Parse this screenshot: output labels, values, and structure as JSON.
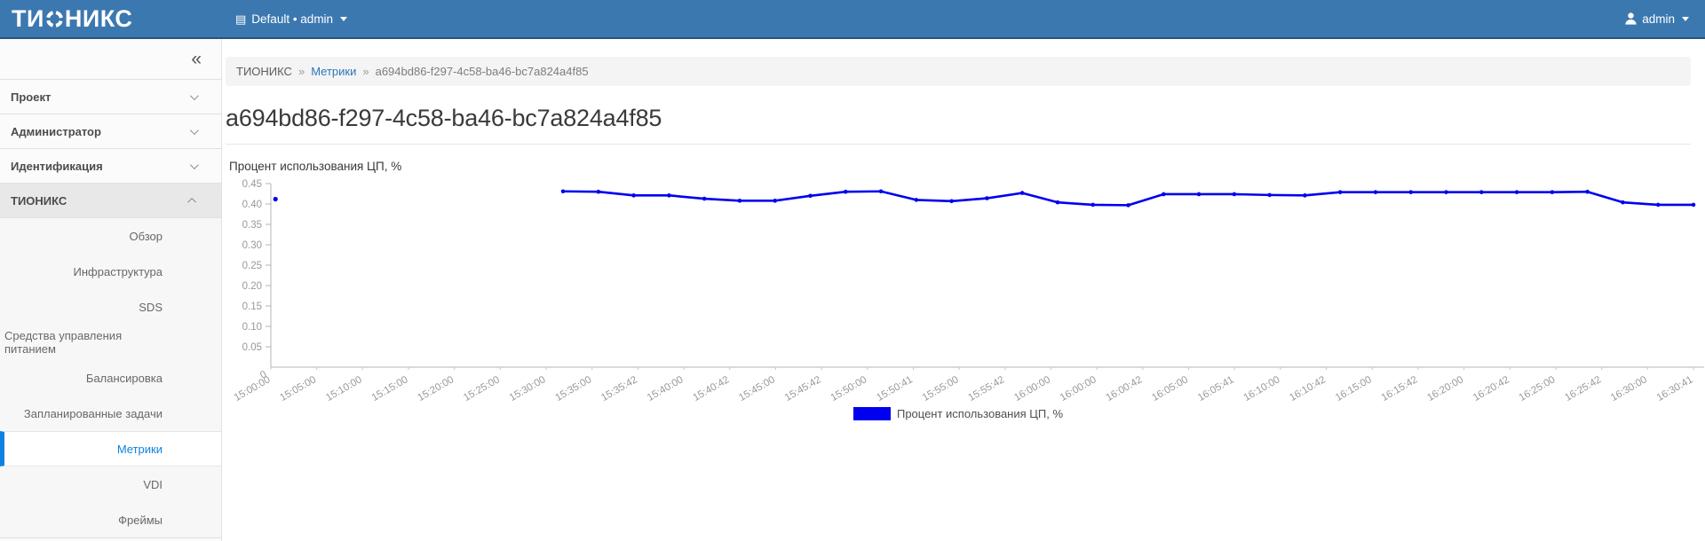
{
  "navbar": {
    "logo_prefix": "ТИ",
    "logo_suffix": "НИКС",
    "icons": {
      "context": "▤",
      "collapse": "«"
    },
    "context_label": "Default • admin",
    "user_label": "admin"
  },
  "sidebar": {
    "collapse_icon": "«",
    "sections": [
      {
        "label": "Проект",
        "expanded": false
      },
      {
        "label": "Администратор",
        "expanded": false
      },
      {
        "label": "Идентификация",
        "expanded": false
      },
      {
        "label": "ТИОНИКС",
        "expanded": true,
        "items": [
          "Обзор",
          "Инфраструктура",
          "SDS",
          "Средства управления питанием",
          "Балансировка",
          "Запланированные задачи",
          "Метрики",
          "VDI",
          "Фреймы"
        ],
        "active_item": "Метрики"
      }
    ]
  },
  "breadcrumb": {
    "separator": "»",
    "items": [
      {
        "label": "ТИОНИКС",
        "type": "text"
      },
      {
        "label": "Метрики",
        "type": "link"
      },
      {
        "label": "a694bd86-f297-4c58-ba46-bc7a824a4f85",
        "type": "current"
      }
    ]
  },
  "page": {
    "title": "a694bd86-f297-4c58-ba46-bc7a824a4f85"
  },
  "chart_data": {
    "type": "line",
    "title": "Процент использования ЦП, %",
    "legend_label": "Процент использования ЦП, %",
    "legend_position": "bottom-center",
    "line_color": "#0000ee",
    "axis_color": "#b4b4b4",
    "tick_text_color": "#999999",
    "grid": false,
    "ylim": [
      0,
      0.45
    ],
    "yticks": [
      0.05,
      0.1,
      0.15,
      0.2,
      0.25,
      0.3,
      0.35,
      0.4,
      0.45
    ],
    "y_origin_label": "0",
    "x_labels": [
      "15:00:00",
      "15:05:00",
      "15:10:00",
      "15:15:00",
      "15:20:00",
      "15:25:00",
      "15:30:00",
      "15:35:00",
      "15:35:42",
      "15:40:00",
      "15:40:42",
      "15:45:00",
      "15:45:42",
      "15:50:00",
      "15:50:41",
      "15:55:00",
      "15:55:42",
      "16:00:00",
      "16:00:00",
      "16:00:42",
      "16:05:00",
      "16:05:41",
      "16:10:00",
      "16:10:42",
      "16:15:00",
      "16:15:42",
      "16:20:00",
      "16:20:42",
      "16:25:00",
      "16:25:42",
      "16:30:00",
      "16:30:41"
    ],
    "series": [
      {
        "name": "Процент использования ЦП, %",
        "isolated_points": [
          {
            "x_label": "15:00:00",
            "x_frac": 0.002,
            "value": 0.412
          }
        ],
        "line": {
          "x_start_frac": 0.2054,
          "x_end_frac": 1.0,
          "values": [
            0.431,
            0.43,
            0.421,
            0.421,
            0.413,
            0.408,
            0.408,
            0.42,
            0.43,
            0.431,
            0.41,
            0.407,
            0.414,
            0.427,
            0.404,
            0.398,
            0.397,
            0.424,
            0.424,
            0.424,
            0.422,
            0.421,
            0.429,
            0.429,
            0.429,
            0.429,
            0.429,
            0.429,
            0.429,
            0.43,
            0.404,
            0.398,
            0.398
          ]
        }
      }
    ]
  }
}
